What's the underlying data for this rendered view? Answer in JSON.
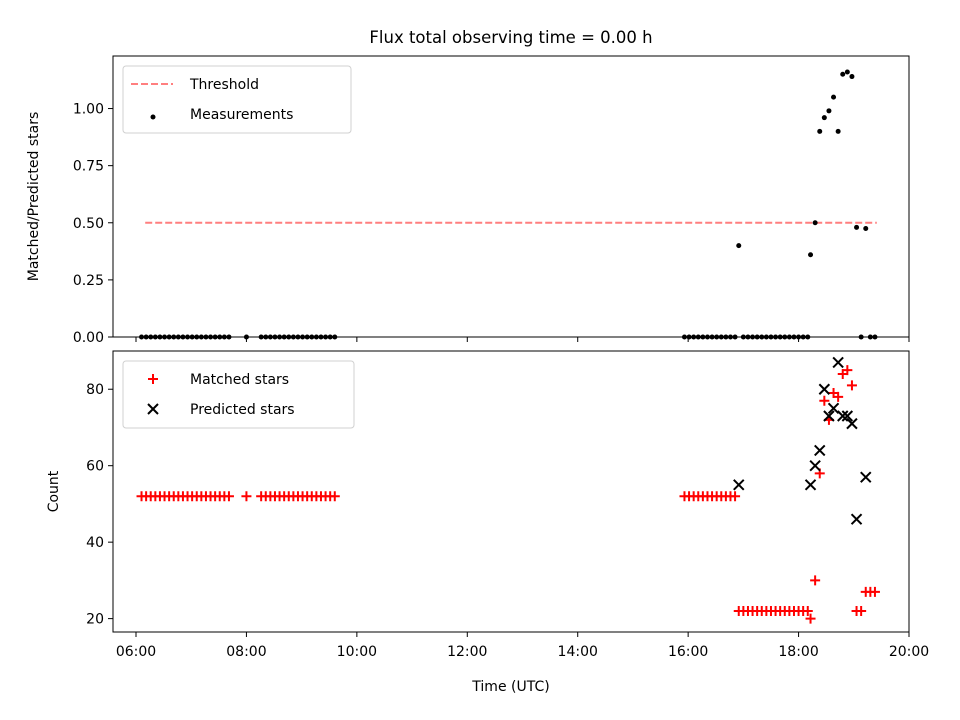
{
  "figure": {
    "title": "Flux total observing time = 0.00 h"
  },
  "chart_data": [
    {
      "type": "scatter",
      "title": "Flux total observing time = 0.00 h",
      "xlabel": "",
      "ylabel": "Matched/Predicted stars",
      "xlim": [
        "05:35",
        "20:00"
      ],
      "ylim": [
        0,
        1.23
      ],
      "x_ticks": [
        "06:00",
        "08:00",
        "10:00",
        "12:00",
        "14:00",
        "16:00",
        "18:00",
        "20:00"
      ],
      "y_ticks": [
        "0.00",
        "0.25",
        "0.50",
        "0.75",
        "1.00"
      ],
      "y_tick_values": [
        0,
        0.25,
        0.5,
        0.75,
        1.0
      ],
      "grid": false,
      "legend": {
        "position": "top-left",
        "entries": [
          "Threshold",
          "Measurements"
        ]
      },
      "series": [
        {
          "name": "Threshold",
          "kind": "line",
          "style": "dashed",
          "color": "#ff7f7f",
          "x": [
            "06:10",
            "19:25"
          ],
          "y": [
            0.5,
            0.5
          ]
        },
        {
          "name": "Measurements",
          "kind": "scatter",
          "marker": "dot",
          "color": "#000000",
          "x": [
            "06:06",
            "06:11",
            "06:16",
            "06:21",
            "06:26",
            "06:31",
            "06:36",
            "06:41",
            "06:46",
            "06:51",
            "06:56",
            "07:01",
            "07:06",
            "07:11",
            "07:16",
            "07:21",
            "07:26",
            "07:31",
            "07:36",
            "07:41",
            "08:00",
            "08:16",
            "08:21",
            "08:26",
            "08:31",
            "08:36",
            "08:41",
            "08:46",
            "08:51",
            "08:56",
            "09:01",
            "09:06",
            "09:11",
            "09:16",
            "09:21",
            "09:26",
            "09:31",
            "09:36",
            "15:56",
            "16:01",
            "16:06",
            "16:11",
            "16:16",
            "16:21",
            "16:26",
            "16:31",
            "16:36",
            "16:41",
            "16:46",
            "16:51",
            "16:55",
            "17:00",
            "17:05",
            "17:10",
            "17:15",
            "17:20",
            "17:25",
            "17:30",
            "17:35",
            "17:40",
            "17:45",
            "17:50",
            "17:55",
            "18:00",
            "18:05",
            "18:10",
            "18:13",
            "18:18",
            "18:23",
            "18:28",
            "18:33",
            "18:38",
            "18:43",
            "18:48",
            "18:53",
            "18:58",
            "19:03",
            "19:08",
            "19:13",
            "19:18",
            "19:23"
          ],
          "y": [
            0,
            0,
            0,
            0,
            0,
            0,
            0,
            0,
            0,
            0,
            0,
            0,
            0,
            0,
            0,
            0,
            0,
            0,
            0,
            0,
            0,
            0,
            0,
            0,
            0,
            0,
            0,
            0,
            0,
            0,
            0,
            0,
            0,
            0,
            0,
            0,
            0,
            0,
            0,
            0,
            0,
            0,
            0,
            0,
            0,
            0,
            0,
            0,
            0,
            0,
            0.4,
            0,
            0,
            0,
            0,
            0,
            0,
            0,
            0,
            0,
            0,
            0,
            0,
            0,
            0,
            0,
            0.36,
            0.5,
            0.9,
            0.96,
            0.99,
            1.05,
            0.9,
            1.15,
            1.16,
            1.14,
            0.48,
            0,
            0.475,
            0,
            0
          ]
        }
      ]
    },
    {
      "type": "scatter",
      "title": "",
      "xlabel": "Time (UTC)",
      "ylabel": "Count",
      "xlim": [
        "05:35",
        "20:00"
      ],
      "ylim": [
        16.5,
        90
      ],
      "x_ticks": [
        "06:00",
        "08:00",
        "10:00",
        "12:00",
        "14:00",
        "16:00",
        "18:00",
        "20:00"
      ],
      "y_ticks": [
        "20",
        "40",
        "60",
        "80"
      ],
      "y_tick_values": [
        20,
        40,
        60,
        80
      ],
      "grid": false,
      "legend": {
        "position": "top-left",
        "entries": [
          "Matched stars",
          "Predicted stars"
        ]
      },
      "series": [
        {
          "name": "Matched stars",
          "kind": "scatter",
          "marker": "plus",
          "color": "#ff0000",
          "x": [
            "06:06",
            "06:11",
            "06:16",
            "06:21",
            "06:26",
            "06:31",
            "06:36",
            "06:41",
            "06:46",
            "06:51",
            "06:56",
            "07:01",
            "07:06",
            "07:11",
            "07:16",
            "07:21",
            "07:26",
            "07:31",
            "07:36",
            "07:41",
            "08:00",
            "08:16",
            "08:21",
            "08:26",
            "08:31",
            "08:36",
            "08:41",
            "08:46",
            "08:51",
            "08:56",
            "09:01",
            "09:06",
            "09:11",
            "09:16",
            "09:21",
            "09:26",
            "09:31",
            "09:36",
            "15:56",
            "16:01",
            "16:06",
            "16:11",
            "16:16",
            "16:21",
            "16:26",
            "16:31",
            "16:36",
            "16:41",
            "16:46",
            "16:51",
            "16:55",
            "17:00",
            "17:05",
            "17:10",
            "17:15",
            "17:20",
            "17:25",
            "17:30",
            "17:35",
            "17:40",
            "17:45",
            "17:50",
            "17:55",
            "18:00",
            "18:05",
            "18:10",
            "18:13",
            "18:18",
            "18:23",
            "18:28",
            "18:33",
            "18:38",
            "18:43",
            "18:48",
            "18:53",
            "18:58",
            "19:03",
            "19:08",
            "19:13",
            "19:18",
            "19:23"
          ],
          "y": [
            52,
            52,
            52,
            52,
            52,
            52,
            52,
            52,
            52,
            52,
            52,
            52,
            52,
            52,
            52,
            52,
            52,
            52,
            52,
            52,
            52,
            52,
            52,
            52,
            52,
            52,
            52,
            52,
            52,
            52,
            52,
            52,
            52,
            52,
            52,
            52,
            52,
            52,
            52,
            52,
            52,
            52,
            52,
            52,
            52,
            52,
            52,
            52,
            52,
            52,
            22,
            22,
            22,
            22,
            22,
            22,
            22,
            22,
            22,
            22,
            22,
            22,
            22,
            22,
            22,
            22,
            20,
            30,
            58,
            77,
            72,
            79,
            78,
            84,
            85,
            81,
            22,
            22,
            27,
            27,
            27
          ]
        },
        {
          "name": "Predicted stars",
          "kind": "scatter",
          "marker": "x",
          "color": "#000000",
          "x": [
            "16:55",
            "18:13",
            "18:18",
            "18:23",
            "18:28",
            "18:33",
            "18:38",
            "18:43",
            "18:48",
            "18:53",
            "18:58",
            "19:03",
            "19:13"
          ],
          "y": [
            55,
            55,
            60,
            64,
            80,
            73,
            75,
            87,
            73,
            73,
            71,
            46,
            57
          ]
        }
      ]
    }
  ]
}
